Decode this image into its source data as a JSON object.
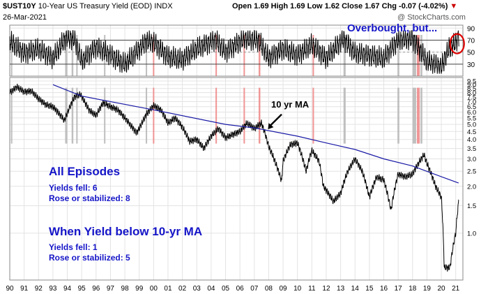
{
  "header": {
    "symbol": "$UST10Y",
    "description": "10-Year US Treasury Yield (EOD)",
    "exchange": "INDX",
    "date": "26-Mar-2021",
    "ohlc": "Open 1.69  High 1.69  Low 1.62  Close 1.67",
    "change_label": "Chg",
    "change": "-0.07 (-4.02%)",
    "change_arrow": "▼",
    "watermark": "@ StockCharts.com"
  },
  "annotations": {
    "overbought": "Overbought, but...",
    "ma_label": "10 yr MA",
    "all_title": "All Episodes",
    "all_fell": "Yields fell: 6",
    "all_rose": "Rose or stabilized: 8",
    "below_title": "When Yield below 10-yr MA",
    "below_fell": "Yields fell: 1",
    "below_rose": "Rose or stabilized: 5"
  },
  "colors": {
    "ma_line": "#1a1aa6",
    "price_line": "#000000",
    "grey_band": "#b9b9b9",
    "red_band": "#f08c8c",
    "annotation_text": "#1515c8",
    "circle": "#dd0000",
    "grid": "#e3e3e3"
  },
  "chart_data": [
    {
      "type": "line",
      "title": "RSI panel",
      "yticks": [
        30,
        50,
        70,
        90
      ],
      "ylim": [
        10,
        95
      ],
      "overbought_level": 70,
      "oversold_level": 30,
      "midline_level": 50,
      "x": [
        1990.0,
        1991.0,
        1992.0,
        1993.0,
        1993.9,
        1994.5,
        1995.0,
        1996.0,
        1997.0,
        1998.0,
        1999.5,
        2000.0,
        2001.0,
        2002.0,
        2003.0,
        2004.3,
        2005.0,
        2006.3,
        2007.3,
        2008.0,
        2009.0,
        2010.0,
        2011.0,
        2012.0,
        2013.2,
        2014.0,
        2015.0,
        2016.0,
        2017.0,
        2018.0,
        2019.0,
        2019.6,
        2020.0,
        2020.5,
        2021.0,
        2021.23
      ],
      "series": [
        {
          "values": [
            68,
            48,
            55,
            40,
            74,
            72,
            35,
            58,
            45,
            30,
            68,
            66,
            42,
            38,
            56,
            70,
            50,
            72,
            70,
            40,
            55,
            45,
            62,
            40,
            72,
            48,
            45,
            40,
            70,
            72,
            35,
            30,
            25,
            55,
            66,
            78
          ]
        }
      ]
    },
    {
      "type": "line",
      "title": "$UST10Y price panel (log scale)",
      "yscale": "log",
      "ylim": [
        0.5,
        10
      ],
      "yticks": [
        1.0,
        1.5,
        2.0,
        2.5,
        3.0,
        3.5,
        4.0,
        4.5,
        5.0,
        5.5,
        6.0,
        6.5,
        7.0,
        7.5,
        8.0,
        8.5,
        9.0,
        9.5
      ],
      "xticks": [
        "90",
        "91",
        "92",
        "93",
        "94",
        "95",
        "96",
        "97",
        "98",
        "99",
        "00",
        "01",
        "02",
        "03",
        "04",
        "05",
        "06",
        "07",
        "08",
        "09",
        "10",
        "11",
        "12",
        "13",
        "14",
        "15",
        "16",
        "17",
        "18",
        "19",
        "20",
        "21"
      ],
      "series": [
        {
          "name": "$UST10Y",
          "x": [
            1990.0,
            1990.5,
            1991.0,
            1991.5,
            1992.0,
            1992.5,
            1993.0,
            1993.8,
            1994.0,
            1994.5,
            1994.9,
            1995.5,
            1996.0,
            1996.5,
            1997.0,
            1997.5,
            1998.0,
            1998.8,
            1999.0,
            1999.5,
            2000.0,
            2000.5,
            2001.0,
            2001.5,
            2002.0,
            2002.5,
            2003.0,
            2003.5,
            2004.0,
            2004.5,
            2005.0,
            2005.5,
            2006.0,
            2006.5,
            2007.0,
            2007.5,
            2008.0,
            2008.9,
            2009.0,
            2009.5,
            2010.0,
            2010.6,
            2011.0,
            2011.5,
            2011.8,
            2012.5,
            2013.0,
            2013.5,
            2014.0,
            2014.5,
            2015.0,
            2015.5,
            2016.0,
            2016.5,
            2017.0,
            2017.5,
            2018.0,
            2018.8,
            2019.0,
            2019.6,
            2020.0,
            2020.2,
            2020.6,
            2021.0,
            2021.23
          ],
          "values": [
            8.0,
            8.7,
            8.1,
            8.2,
            7.3,
            6.7,
            6.5,
            5.3,
            5.9,
            7.5,
            7.8,
            6.2,
            5.7,
            6.9,
            6.5,
            6.2,
            5.5,
            4.4,
            4.7,
            5.8,
            6.6,
            6.2,
            5.1,
            5.5,
            4.8,
            3.9,
            4.0,
            3.5,
            4.2,
            4.7,
            4.1,
            4.3,
            4.5,
            5.1,
            4.7,
            5.1,
            3.6,
            2.15,
            2.9,
            3.7,
            3.8,
            2.5,
            3.4,
            2.9,
            2.0,
            1.6,
            1.8,
            2.5,
            3.0,
            2.5,
            1.7,
            2.3,
            2.2,
            1.4,
            2.4,
            2.3,
            2.4,
            3.2,
            2.8,
            2.0,
            1.7,
            0.6,
            0.6,
            1.0,
            1.67
          ]
        },
        {
          "name": "10 yr MA",
          "x": [
            1993.0,
            1995.0,
            2000.0,
            2005.0,
            2007.0,
            2010.0,
            2012.0,
            2014.0,
            2016.0,
            2018.0,
            2019.5,
            2021.2
          ],
          "values": [
            9.0,
            7.6,
            6.2,
            5.0,
            4.75,
            4.2,
            3.8,
            3.45,
            3.0,
            2.7,
            2.4,
            2.1
          ]
        }
      ],
      "shaded_regions": [
        {
          "color": "grey",
          "start": 1990.08,
          "end": 1990.18
        },
        {
          "color": "grey",
          "start": 1993.85,
          "end": 1994.0
        },
        {
          "color": "grey",
          "start": 1994.3,
          "end": 1994.42
        },
        {
          "color": "grey",
          "start": 1994.62,
          "end": 1994.72
        },
        {
          "color": "grey",
          "start": 1996.55,
          "end": 1996.65
        },
        {
          "color": "grey",
          "start": 1999.45,
          "end": 1999.55
        },
        {
          "color": "red",
          "start": 1999.95,
          "end": 2000.05
        },
        {
          "color": "red",
          "start": 2004.3,
          "end": 2004.4
        },
        {
          "color": "red",
          "start": 2006.25,
          "end": 2006.35
        },
        {
          "color": "red",
          "start": 2007.3,
          "end": 2007.42
        },
        {
          "color": "red",
          "start": 2011.05,
          "end": 2011.15
        },
        {
          "color": "grey",
          "start": 2013.2,
          "end": 2013.35
        },
        {
          "color": "grey",
          "start": 2016.95,
          "end": 2017.08
        },
        {
          "color": "grey",
          "start": 2018.0,
          "end": 2018.25
        },
        {
          "color": "red",
          "start": 2018.3,
          "end": 2018.5
        },
        {
          "color": "grey",
          "start": 2018.55,
          "end": 2018.68
        }
      ]
    }
  ]
}
